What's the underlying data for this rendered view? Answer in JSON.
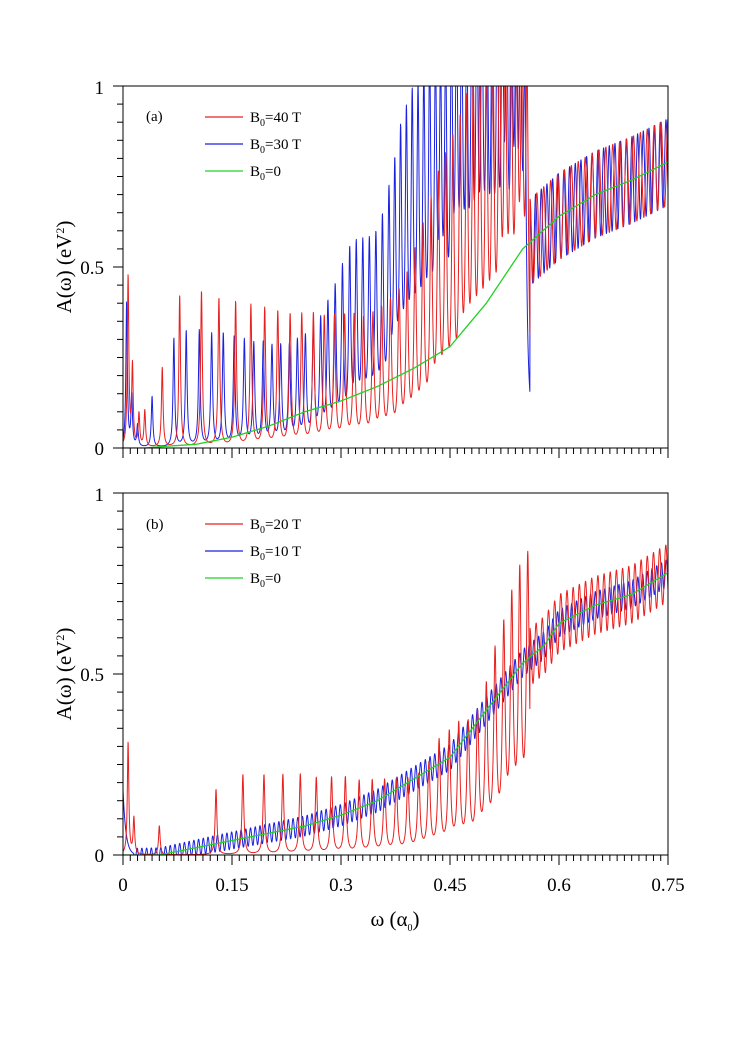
{
  "chart_data": [
    {
      "type": "line",
      "panel_label": "(a)",
      "xlabel": "ω (α₀)",
      "xlabel_main": "ω (α",
      "xlabel_sub": "0",
      "xlabel_end": ")",
      "ylabel_main": "A(ω) (eV",
      "ylabel_sup": "2",
      "ylabel_end": ")",
      "xlim": [
        0,
        0.75
      ],
      "ylim": [
        0,
        1
      ],
      "x_ticks": [
        "0",
        "0.15",
        "0.3",
        "0.45",
        "0.6",
        "0.75"
      ],
      "y_ticks": [
        "0",
        "0.5",
        "1"
      ],
      "show_x_tick_labels": false,
      "legend_position": "top-left",
      "series": [
        {
          "name": "B0=40 T",
          "name_main": "B",
          "name_sub": "0",
          "name_rest": "=40 T",
          "color": "#e8201e",
          "field_tesla": 40,
          "peaks": [
            [
              0.007,
              0.47
            ],
            [
              0.013,
              0.22
            ],
            [
              0.022,
              0.09
            ],
            [
              0.03,
              0.1
            ],
            [
              0.054,
              0.22
            ],
            [
              0.078,
              0.42
            ],
            [
              0.108,
              0.43
            ],
            [
              0.132,
              0.41
            ],
            [
              0.155,
              0.4
            ],
            [
              0.176,
              0.39
            ],
            [
              0.195,
              0.38
            ],
            [
              0.213,
              0.37
            ],
            [
              0.23,
              0.36
            ],
            [
              0.246,
              0.36
            ],
            [
              0.262,
              0.36
            ],
            [
              0.277,
              0.35
            ],
            [
              0.291,
              0.35
            ],
            [
              0.305,
              0.35
            ],
            [
              0.318,
              0.35
            ],
            [
              0.331,
              0.34
            ],
            [
              0.344,
              0.35
            ],
            [
              0.356,
              0.36
            ],
            [
              0.368,
              0.38
            ],
            [
              0.38,
              0.4
            ],
            [
              0.391,
              0.44
            ],
            [
              0.402,
              0.5
            ],
            [
              0.413,
              0.56
            ],
            [
              0.424,
              0.62
            ],
            [
              0.434,
              0.68
            ],
            [
              0.444,
              0.72
            ],
            [
              0.454,
              0.76
            ],
            [
              0.464,
              0.8
            ],
            [
              0.473,
              0.84
            ],
            [
              0.482,
              0.88
            ],
            [
              0.491,
              0.9
            ],
            [
              0.5,
              0.94
            ],
            [
              0.509,
              0.97
            ],
            [
              0.518,
              0.99
            ],
            [
              0.526,
              1.0
            ],
            [
              0.534,
              0.98
            ],
            [
              0.542,
              0.96
            ],
            [
              0.549,
              0.94
            ],
            [
              0.556,
              0.92
            ]
          ]
        },
        {
          "name": "B0=30 T",
          "name_main": "B",
          "name_sub": "0",
          "name_rest": "=30 T",
          "color": "#1a22e0",
          "field_tesla": 30,
          "peaks": [
            [
              0.005,
              0.4
            ],
            [
              0.012,
              0.14
            ],
            [
              0.02,
              0.06
            ],
            [
              0.04,
              0.14
            ],
            [
              0.07,
              0.3
            ],
            [
              0.087,
              0.32
            ],
            [
              0.105,
              0.32
            ],
            [
              0.122,
              0.31
            ],
            [
              0.138,
              0.31
            ],
            [
              0.153,
              0.3
            ],
            [
              0.167,
              0.29
            ],
            [
              0.18,
              0.28
            ],
            [
              0.193,
              0.28
            ],
            [
              0.205,
              0.27
            ],
            [
              0.217,
              0.27
            ],
            [
              0.229,
              0.27
            ],
            [
              0.24,
              0.28
            ],
            [
              0.251,
              0.29
            ],
            [
              0.262,
              0.31
            ],
            [
              0.272,
              0.33
            ],
            [
              0.282,
              0.37
            ],
            [
              0.292,
              0.41
            ],
            [
              0.302,
              0.46
            ],
            [
              0.312,
              0.5
            ],
            [
              0.321,
              0.51
            ],
            [
              0.33,
              0.51
            ],
            [
              0.339,
              0.51
            ],
            [
              0.348,
              0.52
            ],
            [
              0.357,
              0.56
            ],
            [
              0.366,
              0.62
            ],
            [
              0.374,
              0.68
            ],
            [
              0.382,
              0.76
            ],
            [
              0.39,
              0.8
            ],
            [
              0.398,
              0.84
            ],
            [
              0.406,
              0.84
            ],
            [
              0.414,
              0.88
            ],
            [
              0.422,
              0.92
            ],
            [
              0.43,
              0.9
            ],
            [
              0.437,
              0.86
            ],
            [
              0.444,
              0.9
            ],
            [
              0.452,
              0.95
            ],
            [
              0.459,
              0.98
            ],
            [
              0.466,
              0.96
            ],
            [
              0.473,
              0.92
            ],
            [
              0.48,
              0.94
            ],
            [
              0.487,
              0.98
            ],
            [
              0.494,
              1.0
            ],
            [
              0.501,
              0.97
            ],
            [
              0.508,
              0.94
            ],
            [
              0.515,
              0.95
            ],
            [
              0.522,
              0.96
            ],
            [
              0.528,
              0.93
            ],
            [
              0.535,
              0.9
            ],
            [
              0.541,
              0.92
            ],
            [
              0.547,
              0.9
            ],
            [
              0.553,
              0.88
            ]
          ]
        },
        {
          "name": "B0=0",
          "name_main": "B",
          "name_sub": "0",
          "name_rest": "=0",
          "color": "#22d022",
          "field_tesla": 0,
          "x": [
            0.0,
            0.03,
            0.06,
            0.1,
            0.15,
            0.2,
            0.25,
            0.3,
            0.35,
            0.4,
            0.45,
            0.5,
            0.55,
            0.6,
            0.65,
            0.7,
            0.75
          ],
          "y": [
            0.0,
            0.0,
            0.005,
            0.01,
            0.03,
            0.06,
            0.1,
            0.13,
            0.17,
            0.22,
            0.28,
            0.4,
            0.55,
            0.64,
            0.7,
            0.74,
            0.79
          ]
        }
      ]
    },
    {
      "type": "line",
      "panel_label": "(b)",
      "xlabel": "ω (α₀)",
      "xlabel_main": "ω (α",
      "xlabel_sub": "0",
      "xlabel_end": ")",
      "ylabel_main": "A(ω) (eV",
      "ylabel_sup": "2",
      "ylabel_end": ")",
      "xlim": [
        0,
        0.75
      ],
      "ylim": [
        0,
        1
      ],
      "x_ticks": [
        "0",
        "0.15",
        "0.3",
        "0.45",
        "0.6",
        "0.75"
      ],
      "y_ticks": [
        "0",
        "0.5",
        "1"
      ],
      "show_x_tick_labels": true,
      "legend_position": "top-left",
      "series": [
        {
          "name": "B0=20 T",
          "name_main": "B",
          "name_sub": "0",
          "name_rest": "=20 T",
          "color": "#e8201e",
          "field_tesla": 20,
          "peaks": [
            [
              0.007,
              0.31
            ],
            [
              0.015,
              0.1
            ],
            [
              0.05,
              0.08
            ],
            [
              0.128,
              0.18
            ],
            [
              0.165,
              0.22
            ],
            [
              0.194,
              0.22
            ],
            [
              0.22,
              0.22
            ],
            [
              0.244,
              0.22
            ],
            [
              0.266,
              0.21
            ],
            [
              0.287,
              0.21
            ],
            [
              0.306,
              0.21
            ],
            [
              0.325,
              0.2
            ],
            [
              0.343,
              0.2
            ],
            [
              0.36,
              0.2
            ],
            [
              0.376,
              0.2
            ],
            [
              0.392,
              0.2
            ],
            [
              0.407,
              0.21
            ],
            [
              0.421,
              0.24
            ],
            [
              0.435,
              0.3
            ],
            [
              0.449,
              0.32
            ],
            [
              0.462,
              0.34
            ],
            [
              0.475,
              0.34
            ],
            [
              0.488,
              0.36
            ],
            [
              0.5,
              0.43
            ],
            [
              0.512,
              0.52
            ],
            [
              0.524,
              0.58
            ],
            [
              0.535,
              0.65
            ],
            [
              0.546,
              0.71
            ],
            [
              0.557,
              0.74
            ],
            [
              0.568,
              0.76
            ],
            [
              0.578,
              0.77
            ],
            [
              0.588,
              0.74
            ],
            [
              0.598,
              0.69
            ],
            [
              0.608,
              0.67
            ],
            [
              0.618,
              0.69
            ],
            [
              0.627,
              0.74
            ],
            [
              0.636,
              0.8
            ],
            [
              0.645,
              0.83
            ],
            [
              0.654,
              0.84
            ],
            [
              0.663,
              0.83
            ],
            [
              0.672,
              0.8
            ],
            [
              0.681,
              0.78
            ],
            [
              0.69,
              0.79
            ],
            [
              0.698,
              0.82
            ],
            [
              0.706,
              0.86
            ],
            [
              0.714,
              0.89
            ],
            [
              0.722,
              0.9
            ]
          ]
        },
        {
          "name": "B0=10 T",
          "name_main": "B",
          "name_sub": "0",
          "name_rest": "=10 T",
          "color": "#1a22e0",
          "field_tesla": 10
        },
        {
          "name": "B0=0",
          "name_main": "B",
          "name_sub": "0",
          "name_rest": "=0",
          "color": "#22d022",
          "field_tesla": 0,
          "x": [
            0.0,
            0.05,
            0.1,
            0.15,
            0.2,
            0.25,
            0.3,
            0.35,
            0.4,
            0.45,
            0.5,
            0.55,
            0.58,
            0.6,
            0.65,
            0.7,
            0.75
          ],
          "y": [
            0.0,
            0.0,
            0.02,
            0.04,
            0.06,
            0.08,
            0.11,
            0.15,
            0.21,
            0.27,
            0.4,
            0.53,
            0.58,
            0.64,
            0.69,
            0.72,
            0.78
          ]
        }
      ]
    }
  ]
}
